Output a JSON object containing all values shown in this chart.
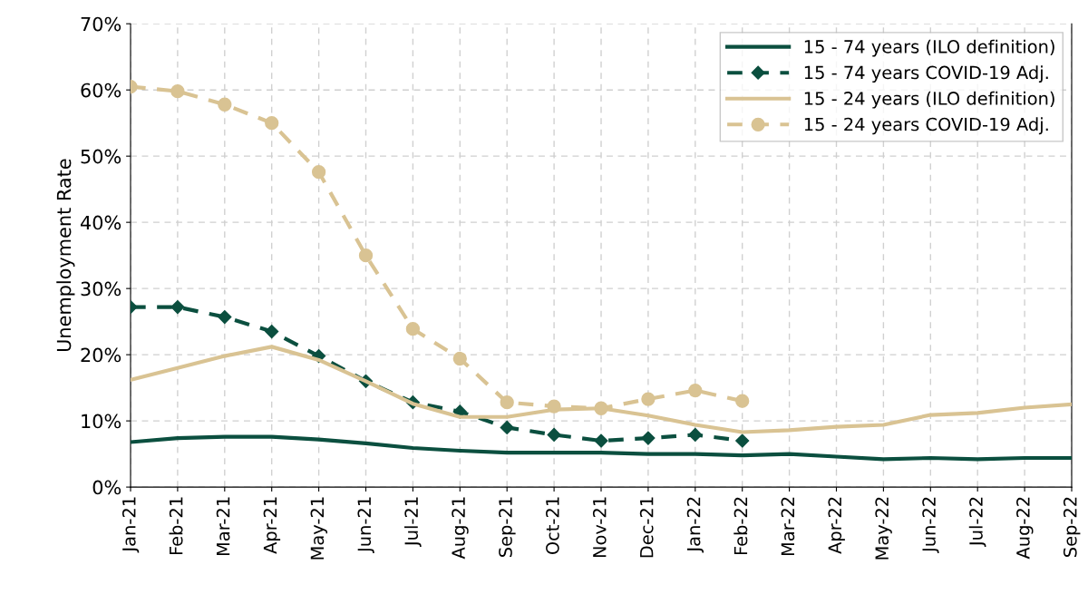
{
  "chart_data": {
    "type": "line",
    "ylabel": "Unemployment Rate",
    "categories": [
      "Jan-21",
      "Feb-21",
      "Mar-21",
      "Apr-21",
      "May-21",
      "Jun-21",
      "Jul-21",
      "Aug-21",
      "Sep-21",
      "Oct-21",
      "Nov-21",
      "Dec-21",
      "Jan-22",
      "Feb-22",
      "Mar-22",
      "Apr-22",
      "May-22",
      "Jun-22",
      "Jul-22",
      "Aug-22",
      "Sep-22"
    ],
    "series": [
      {
        "name": "15 - 74 years (ILO definition)",
        "color": "#0b4f3f",
        "line_style": "solid",
        "marker": "none",
        "values": [
          6.8,
          7.4,
          7.6,
          7.6,
          7.2,
          6.6,
          5.9,
          5.5,
          5.2,
          5.2,
          5.2,
          5.0,
          5.0,
          4.8,
          5.0,
          4.6,
          4.2,
          4.4,
          4.2,
          4.4,
          4.4
        ]
      },
      {
        "name": "15 - 74 years COVID-19 Adj.",
        "color": "#0b4f3f",
        "line_style": "dashed",
        "marker": "diamond",
        "values": [
          27.2,
          27.2,
          25.7,
          23.5,
          19.8,
          16.0,
          12.8,
          11.4,
          9.0,
          7.9,
          7.0,
          7.4,
          7.9,
          7.0,
          null,
          null,
          null,
          null,
          null,
          null,
          null
        ]
      },
      {
        "name": "15 - 24 years (ILO definition)",
        "color": "#d9c393",
        "line_style": "solid",
        "marker": "none",
        "values": [
          16.2,
          18.0,
          19.8,
          21.2,
          19.2,
          16.0,
          12.6,
          10.6,
          10.6,
          11.7,
          11.9,
          10.8,
          9.4,
          8.3,
          8.6,
          9.1,
          9.4,
          10.9,
          11.2,
          12.0,
          12.5
        ]
      },
      {
        "name": "15 - 24 years COVID-19 Adj.",
        "color": "#d9c393",
        "line_style": "dashed",
        "marker": "circle",
        "values": [
          60.5,
          59.8,
          57.8,
          55.0,
          47.6,
          35.0,
          23.9,
          19.4,
          12.8,
          12.2,
          11.9,
          13.3,
          14.6,
          13.0,
          null,
          null,
          null,
          null,
          null,
          null,
          null
        ]
      }
    ],
    "ylim": [
      0,
      70
    ],
    "yticks": [
      {
        "value": 0,
        "label": "0%"
      },
      {
        "value": 10,
        "label": "10%"
      },
      {
        "value": 20,
        "label": "20%"
      },
      {
        "value": 30,
        "label": "30%"
      },
      {
        "value": 40,
        "label": "40%"
      },
      {
        "value": 50,
        "label": "50%"
      },
      {
        "value": 60,
        "label": "60%"
      },
      {
        "value": 70,
        "label": "70%"
      }
    ],
    "grid": true,
    "legend": "top right"
  }
}
